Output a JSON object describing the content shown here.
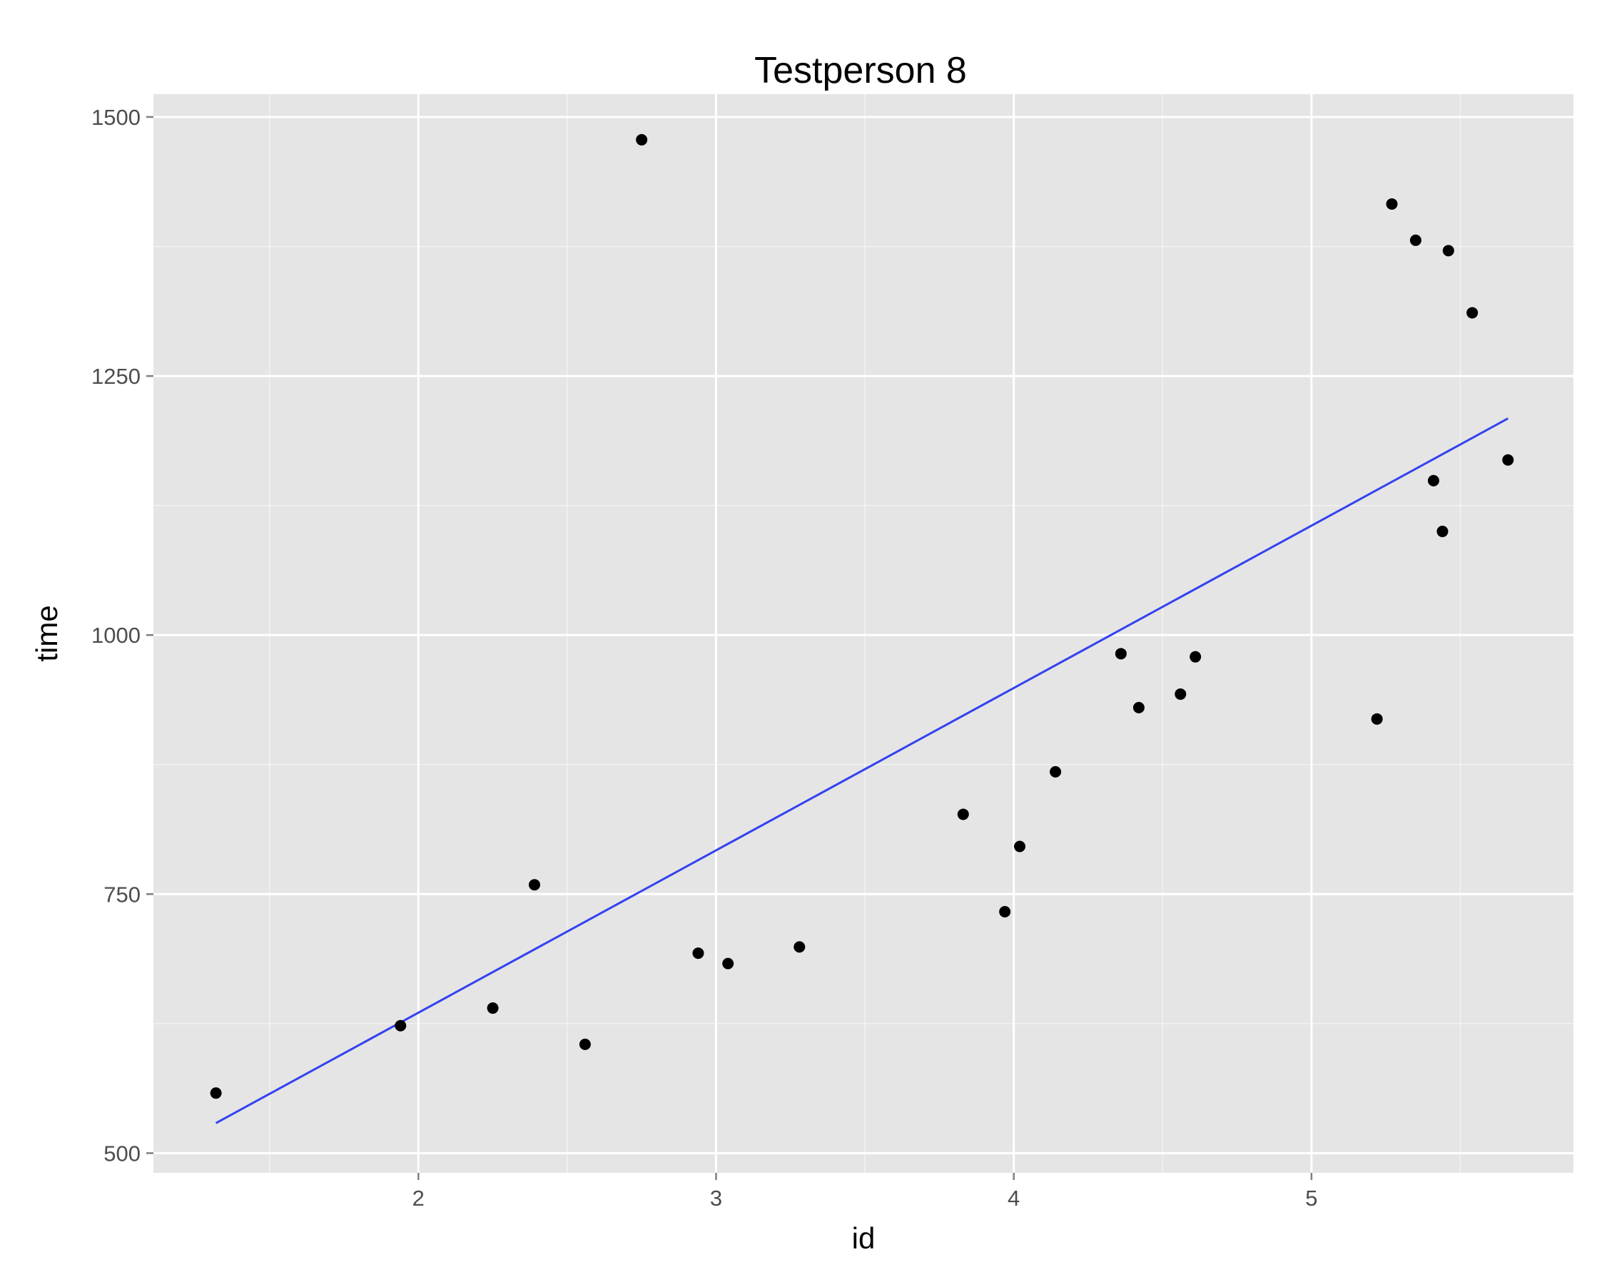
{
  "chart_data": {
    "type": "scatter",
    "title": "Testperson 8",
    "xlabel": "id",
    "ylabel": "time",
    "xlim": [
      1.11,
      5.88
    ],
    "ylim": [
      481,
      1522
    ],
    "x_ticks": [
      2,
      3,
      4,
      5
    ],
    "x_tick_labels": [
      "2",
      "3",
      "4",
      "5"
    ],
    "y_ticks": [
      500,
      750,
      1000,
      1250,
      1500
    ],
    "y_tick_labels": [
      "500",
      "750",
      "1000",
      "1250",
      "1500"
    ],
    "grid": true,
    "legend": "none",
    "series": [
      {
        "points": [
          {
            "x": 1.32,
            "y": 558
          },
          {
            "x": 1.94,
            "y": 623
          },
          {
            "x": 2.25,
            "y": 640
          },
          {
            "x": 2.39,
            "y": 759
          },
          {
            "x": 2.56,
            "y": 605
          },
          {
            "x": 2.75,
            "y": 1478
          },
          {
            "x": 2.94,
            "y": 693
          },
          {
            "x": 3.04,
            "y": 683
          },
          {
            "x": 3.28,
            "y": 699
          },
          {
            "x": 3.83,
            "y": 827
          },
          {
            "x": 3.97,
            "y": 733
          },
          {
            "x": 4.02,
            "y": 796
          },
          {
            "x": 4.14,
            "y": 868
          },
          {
            "x": 4.36,
            "y": 982
          },
          {
            "x": 4.42,
            "y": 930
          },
          {
            "x": 4.56,
            "y": 943
          },
          {
            "x": 4.61,
            "y": 979
          },
          {
            "x": 5.22,
            "y": 919
          },
          {
            "x": 5.27,
            "y": 1416
          },
          {
            "x": 5.35,
            "y": 1381
          },
          {
            "x": 5.41,
            "y": 1149
          },
          {
            "x": 5.44,
            "y": 1100
          },
          {
            "x": 5.46,
            "y": 1371
          },
          {
            "x": 5.54,
            "y": 1311
          },
          {
            "x": 5.66,
            "y": 1169
          }
        ],
        "color": "#000000"
      }
    ],
    "trend_line": {
      "x": [
        1.32,
        5.66
      ],
      "y": [
        529,
        1209
      ],
      "color": "#3341f0"
    },
    "background_color": "#e5e5e5",
    "grid_color": "#ffffff"
  }
}
